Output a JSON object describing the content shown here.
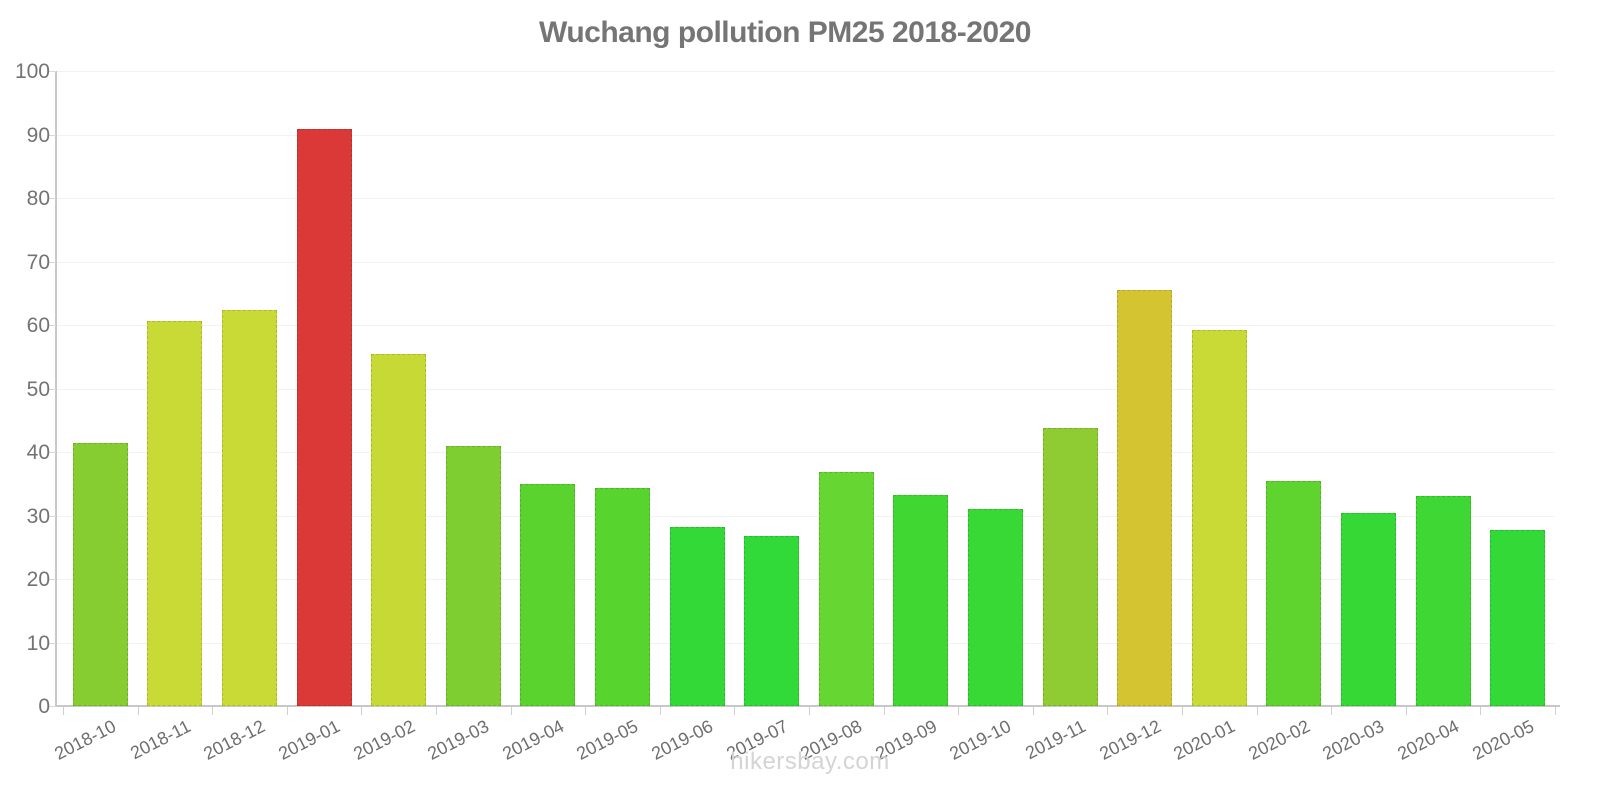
{
  "title": "Wuchang pollution PM25 2018-2020",
  "footer": "hikersbay.com",
  "colors": {
    "title_text": "#757575",
    "axis_line": "#c8c8c8",
    "gridline": "#f2f2f2",
    "y_label_text": "#737373",
    "x_label_text": "#6e6e6e",
    "footer_text": "#d4d4d4",
    "bar_red": "#DB3838",
    "bar_gold": "#D5C431",
    "bar_yellow_green": "#C9DA36",
    "bar_green": "#33D937"
  },
  "chart_data": {
    "type": "bar",
    "title": "Wuchang pollution PM25 2018-2020",
    "xlabel": "",
    "ylabel": "",
    "ylim": [
      0,
      100
    ],
    "y_ticks": [
      0,
      10,
      20,
      30,
      40,
      50,
      60,
      70,
      80,
      90,
      100
    ],
    "grid": true,
    "legend": false,
    "categories": [
      "2018-10",
      "2018-11",
      "2018-12",
      "2019-01",
      "2019-02",
      "2019-03",
      "2019-04",
      "2019-05",
      "2019-06",
      "2019-07",
      "2019-08",
      "2019-09",
      "2019-10",
      "2019-11",
      "2019-12",
      "2020-01",
      "2020-02",
      "2020-03",
      "2020-04",
      "2020-05"
    ],
    "values": [
      41.4,
      60.6,
      62.3,
      90.8,
      55.4,
      41.0,
      34.9,
      34.3,
      28.2,
      26.8,
      36.9,
      33.2,
      31.0,
      43.8,
      65.5,
      59.2,
      35.4,
      30.4,
      33.0,
      27.7
    ],
    "bar_colors": [
      "#86CD31",
      "#C9DA36",
      "#C9DA36",
      "#DB3838",
      "#C6D934",
      "#7FCE31",
      "#5BD32E",
      "#58D42E",
      "#33D937",
      "#31DA38",
      "#66D632",
      "#41D733",
      "#38D835",
      "#8FCB33",
      "#D5C431",
      "#C9DA36",
      "#5FD42F",
      "#36D835",
      "#3FD733",
      "#32D937"
    ]
  }
}
